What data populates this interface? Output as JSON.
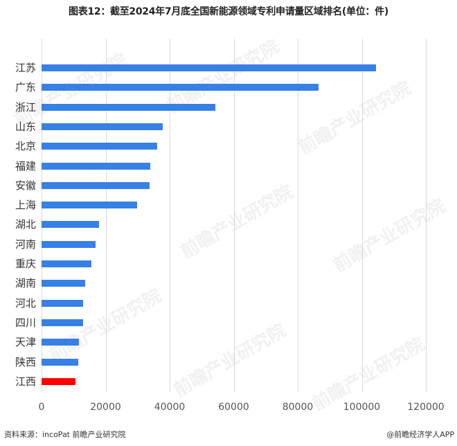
{
  "title": "图表12：截至2024年7月底全国新能源领域专利申请量区域排名(单位：件)",
  "footer": {
    "source": "资料来源：incoPat 前瞻产业研究院",
    "credit": "@前瞻经济学人APP"
  },
  "watermark": "前瞻产业研究院",
  "colors": {
    "bar": "#3680e6",
    "highlight": "#ff0000",
    "grid": "#d9d9d9"
  },
  "chart_data": {
    "type": "bar",
    "orientation": "horizontal",
    "title": "图表12：截至2024年7月底全国新能源领域专利申请量区域排名(单位：件)",
    "xlabel": "",
    "ylabel": "",
    "xlim": [
      0,
      120000
    ],
    "xticks": [
      0,
      20000,
      40000,
      60000,
      80000,
      100000,
      120000
    ],
    "xtick_labels": [
      "0",
      "20000",
      "40000",
      "60000",
      "80000",
      "100000",
      "120000"
    ],
    "grid": true,
    "legend": false,
    "categories": [
      "江苏",
      "广东",
      "浙江",
      "山东",
      "北京",
      "福建",
      "安徽",
      "上海",
      "湖北",
      "河南",
      "重庆",
      "湖南",
      "河北",
      "四川",
      "天津",
      "陕西",
      "江西"
    ],
    "values": [
      104400,
      86400,
      54200,
      37900,
      36200,
      34000,
      33800,
      29900,
      18000,
      16900,
      15600,
      13700,
      13000,
      12900,
      11600,
      11400,
      10600
    ],
    "highlight": "江西"
  }
}
